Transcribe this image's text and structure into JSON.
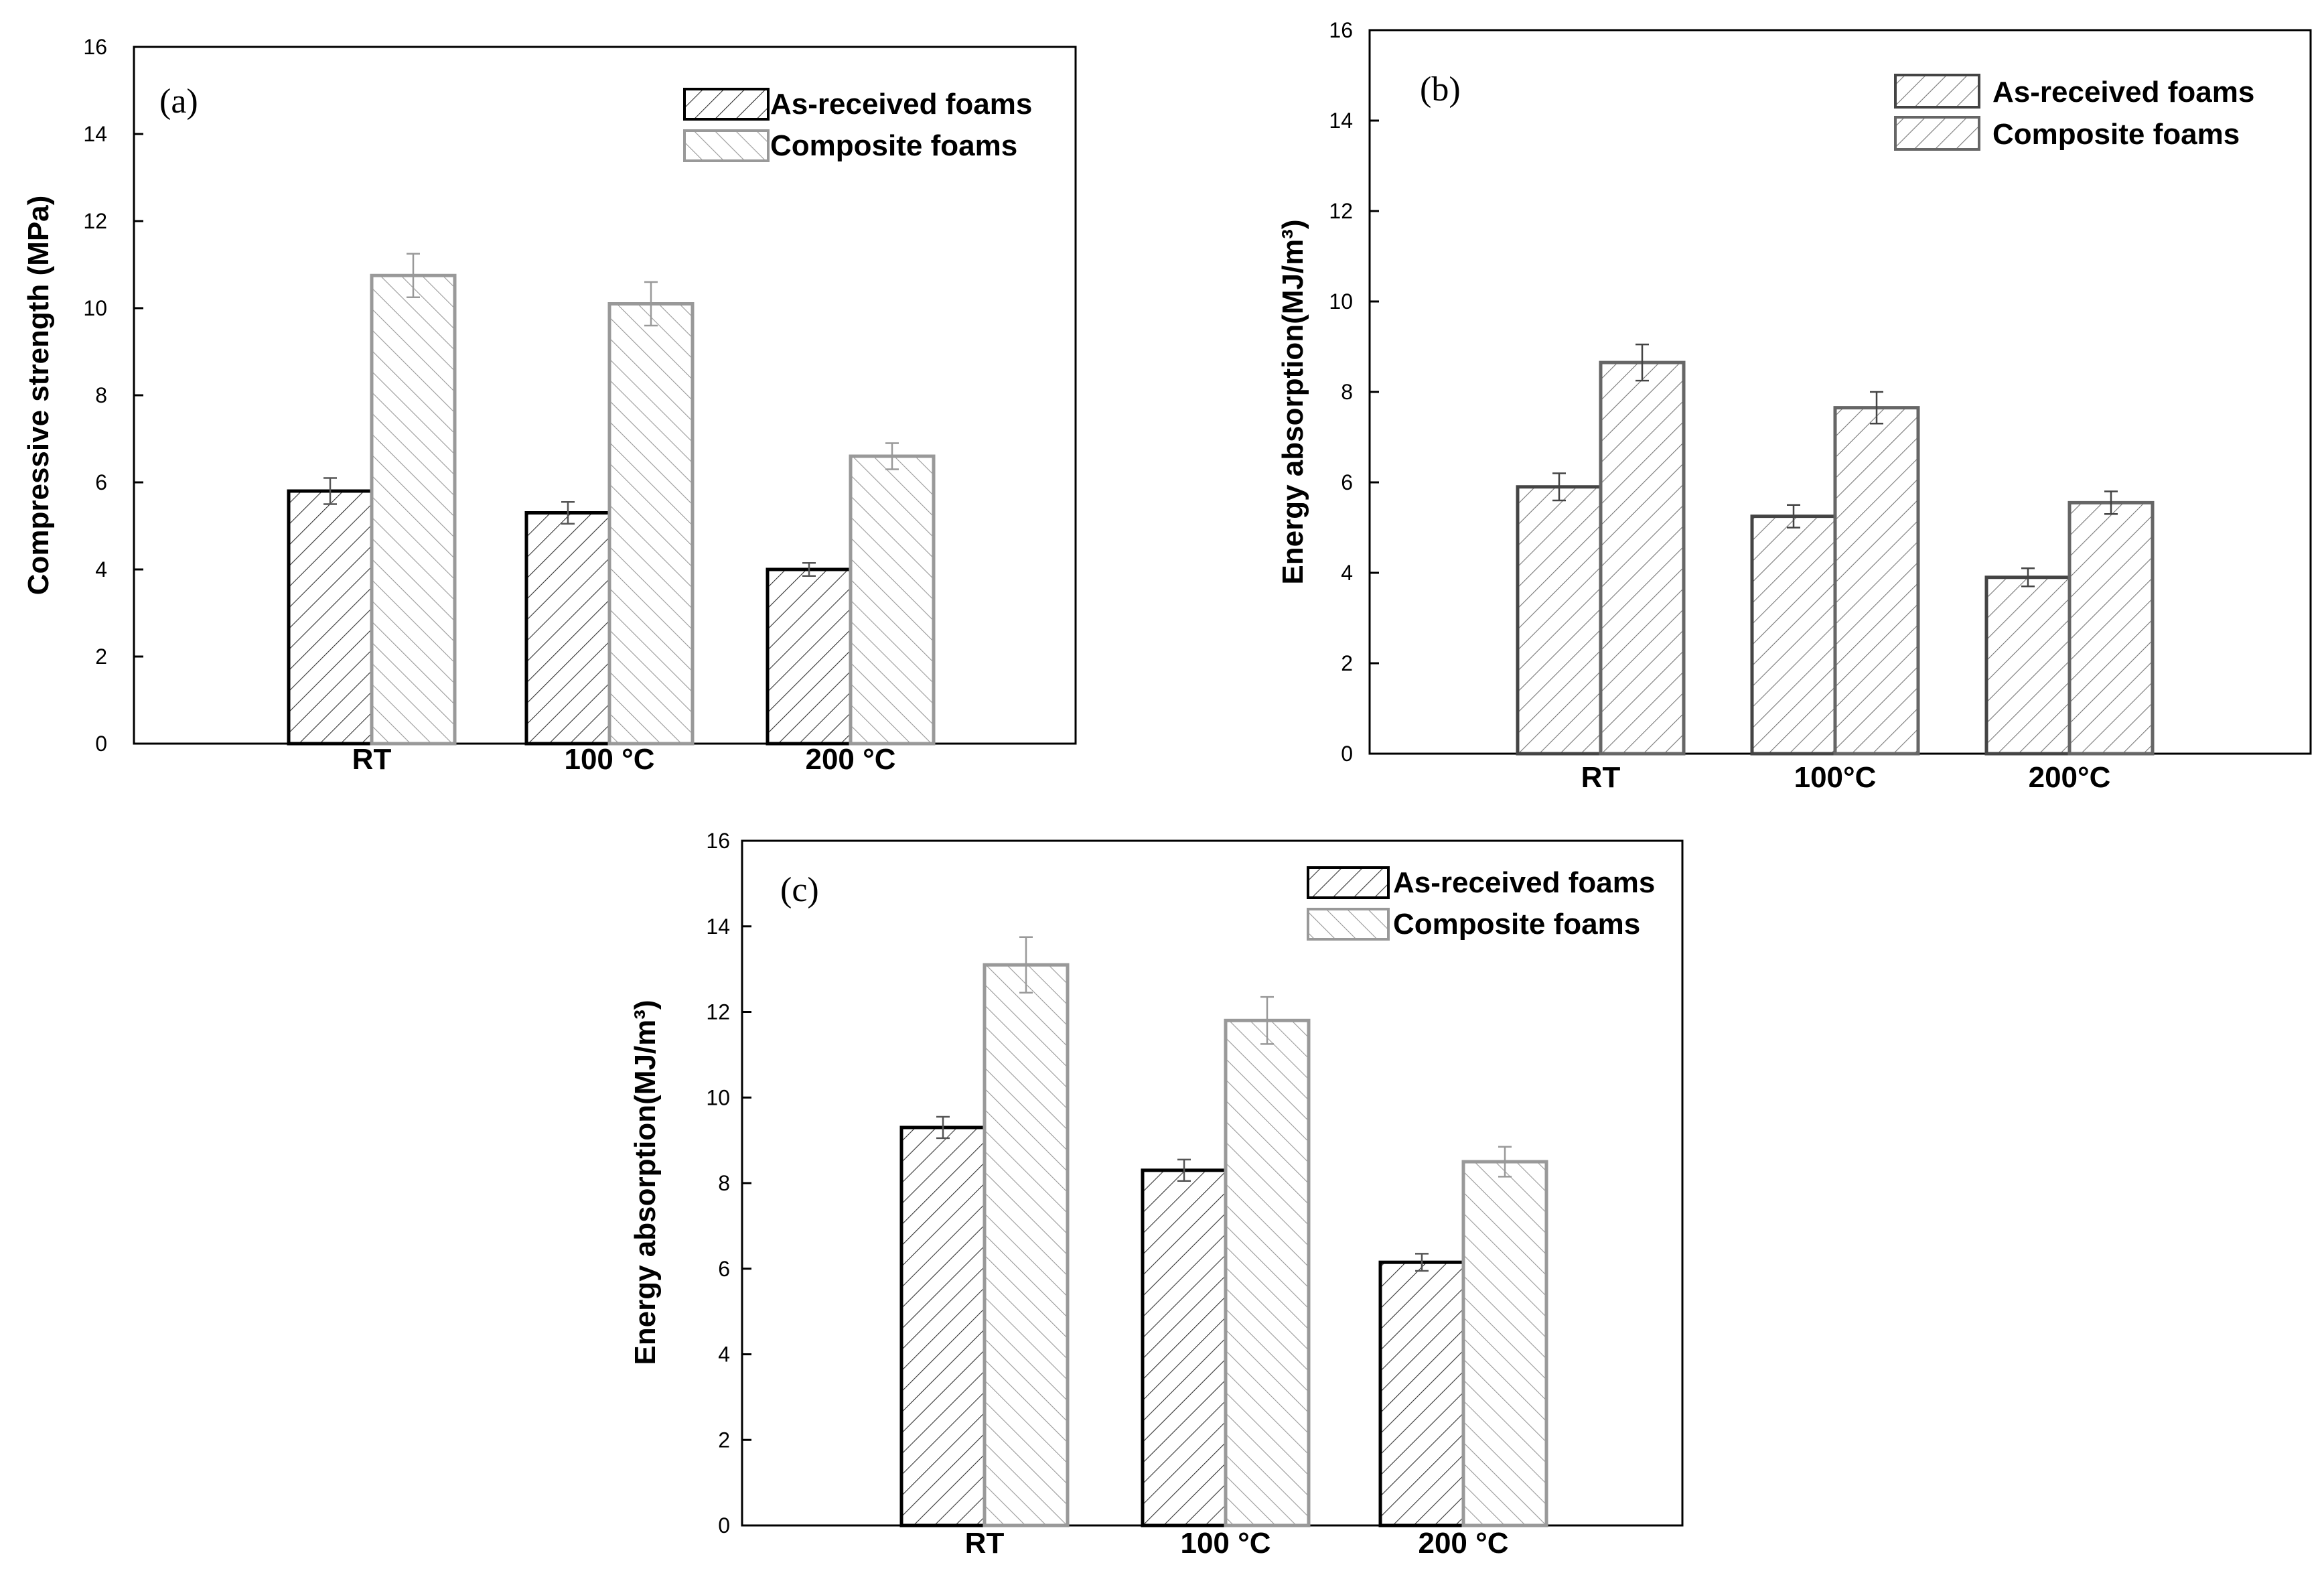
{
  "figure": {
    "legend": [
      "As-received foams",
      "Composite foams"
    ]
  },
  "chart_data": [
    {
      "panel": "(a)",
      "type": "bar",
      "ylabel": "Compressive strength (MPa)",
      "xlabel": "",
      "ylim": [
        0,
        16
      ],
      "yticks": [
        0,
        2,
        4,
        6,
        8,
        10,
        12,
        14,
        16
      ],
      "categories": [
        "RT",
        "100 °C",
        "200 °C"
      ],
      "series": [
        {
          "name": "As-received foams",
          "values": [
            5.8,
            5.3,
            4.0
          ],
          "errors": [
            0.3,
            0.25,
            0.15
          ]
        },
        {
          "name": "Composite foams",
          "values": [
            10.75,
            10.1,
            6.6
          ],
          "errors": [
            0.5,
            0.5,
            0.3
          ]
        }
      ],
      "legend_position": "top-right"
    },
    {
      "panel": "(b)",
      "type": "bar",
      "ylabel": "Energy absorption(MJ/m³)",
      "xlabel": "",
      "ylim": [
        0,
        16
      ],
      "yticks": [
        0,
        2,
        4,
        6,
        8,
        10,
        12,
        14,
        16
      ],
      "categories": [
        "RT",
        "100°C",
        "200°C"
      ],
      "series": [
        {
          "name": "As-received foams",
          "values": [
            5.9,
            5.25,
            3.9
          ],
          "errors": [
            0.3,
            0.25,
            0.2
          ]
        },
        {
          "name": "Composite foams",
          "values": [
            8.65,
            7.65,
            5.55
          ],
          "errors": [
            0.4,
            0.35,
            0.25
          ]
        }
      ],
      "legend_position": "top-right"
    },
    {
      "panel": "(c)",
      "type": "bar",
      "ylabel": "Energy absorption(MJ/m³)",
      "xlabel": "",
      "ylim": [
        0,
        16
      ],
      "yticks": [
        0,
        2,
        4,
        6,
        8,
        10,
        12,
        14,
        16
      ],
      "categories": [
        "RT",
        "100 °C",
        "200 °C"
      ],
      "series": [
        {
          "name": "As-received foams",
          "values": [
            9.3,
            8.3,
            6.15
          ],
          "errors": [
            0.25,
            0.25,
            0.2
          ]
        },
        {
          "name": "Composite foams",
          "values": [
            13.1,
            11.8,
            8.5
          ],
          "errors": [
            0.65,
            0.55,
            0.35
          ]
        }
      ],
      "legend_position": "top-right"
    }
  ]
}
